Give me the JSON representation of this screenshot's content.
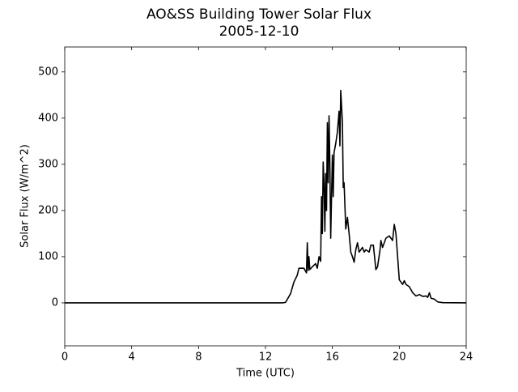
{
  "chart_data": {
    "type": "line",
    "title": "AO&SS Building Tower Solar Flux",
    "subtitle": "2005-12-10",
    "x_label": "Time (UTC)",
    "y_label": "Solar Flux (W/m^2)",
    "x": [
      0,
      13,
      13.2,
      13.5,
      13.7,
      13.9,
      14.0,
      14.3,
      14.45,
      14.5,
      14.55,
      14.6,
      14.65,
      14.8,
      15.0,
      15.1,
      15.2,
      15.3,
      15.35,
      15.4,
      15.45,
      15.5,
      15.55,
      15.6,
      15.65,
      15.7,
      15.75,
      15.8,
      15.85,
      15.9,
      16.0,
      16.05,
      16.1,
      16.2,
      16.3,
      16.4,
      16.45,
      16.5,
      16.6,
      16.65,
      16.7,
      16.8,
      16.9,
      17.0,
      17.1,
      17.2,
      17.3,
      17.4,
      17.5,
      17.6,
      17.8,
      17.9,
      18.0,
      18.2,
      18.3,
      18.45,
      18.6,
      18.7,
      18.85,
      18.9,
      19.0,
      19.2,
      19.4,
      19.5,
      19.6,
      19.7,
      19.8,
      19.9,
      20.0,
      20.2,
      20.3,
      20.4,
      20.6,
      20.8,
      21.0,
      21.2,
      21.4,
      21.6,
      21.7,
      21.8,
      21.9,
      22.1,
      22.3,
      22.6,
      24
    ],
    "series": [
      {
        "color": "#000000",
        "values": [
          0,
          0,
          1,
          20,
          45,
          60,
          75,
          75,
          65,
          130,
          70,
          100,
          72,
          78,
          85,
          75,
          100,
          90,
          230,
          150,
          305,
          260,
          155,
          280,
          200,
          390,
          260,
          405,
          300,
          140,
          320,
          230,
          325,
          345,
          370,
          415,
          340,
          460,
          390,
          250,
          260,
          160,
          185,
          150,
          110,
          100,
          88,
          115,
          130,
          110,
          120,
          110,
          115,
          110,
          125,
          125,
          72,
          78,
          115,
          135,
          120,
          140,
          145,
          140,
          135,
          170,
          150,
          100,
          50,
          40,
          48,
          40,
          35,
          22,
          15,
          18,
          14,
          15,
          12,
          22,
          10,
          8,
          2,
          0.5,
          0
        ]
      }
    ],
    "xlim": [
      0,
      24
    ],
    "xticks": [
      0,
      4,
      8,
      12,
      16,
      20,
      24
    ],
    "ylim": [
      -93,
      554
    ],
    "yticks": [
      0,
      100,
      200,
      300,
      400,
      500
    ]
  }
}
